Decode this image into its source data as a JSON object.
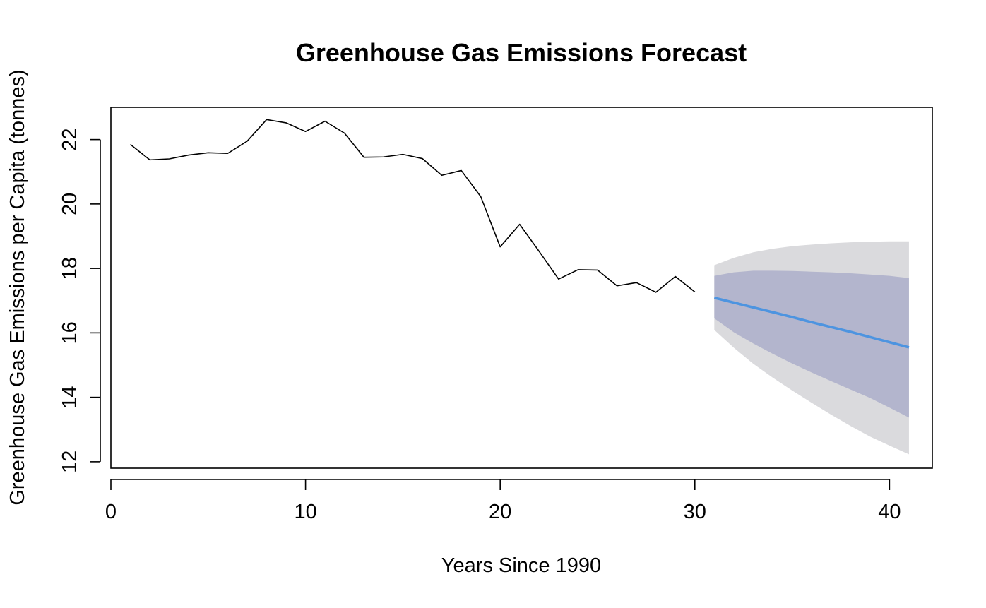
{
  "chart_data": {
    "type": "line",
    "title": "Greenhouse Gas Emissions Forecast",
    "xlabel": "Years Since 1990",
    "ylabel": "Greenhouse Gas Emissions per Capita (tonnes)",
    "xlim": [
      0.0,
      42.2
    ],
    "ylim": [
      11.8,
      23.0
    ],
    "xticks": [
      0,
      10,
      20,
      30,
      40
    ],
    "yticks": [
      12,
      14,
      16,
      18,
      20,
      22
    ],
    "grid": false,
    "legend": "none",
    "colors": {
      "history": "#000000",
      "forecast_line": "#4d94e0",
      "interval_80": "#b3b5cd",
      "interval_95": "#dadadd",
      "frame": "#000000"
    },
    "series": [
      {
        "role": "history",
        "x": [
          1,
          2,
          3,
          4,
          5,
          6,
          7,
          8,
          9,
          10,
          11,
          12,
          13,
          14,
          15,
          16,
          17,
          18,
          19,
          20,
          21,
          22,
          23,
          24,
          25,
          26,
          27,
          28,
          29,
          30
        ],
        "y": [
          21.85,
          21.37,
          21.4,
          21.52,
          21.59,
          21.57,
          21.95,
          22.62,
          22.52,
          22.25,
          22.57,
          22.2,
          21.45,
          21.46,
          21.54,
          21.41,
          20.89,
          21.04,
          20.23,
          18.67,
          19.37,
          18.53,
          17.67,
          17.96,
          17.95,
          17.46,
          17.56,
          17.26,
          17.75,
          17.27
        ]
      },
      {
        "role": "forecast",
        "x": [
          31,
          32,
          33,
          34,
          35,
          36,
          37,
          38,
          39,
          40,
          41
        ],
        "y": [
          17.09,
          16.94,
          16.79,
          16.64,
          16.49,
          16.33,
          16.18,
          16.03,
          15.87,
          15.71,
          15.55
        ],
        "lower_80": [
          16.45,
          16.02,
          15.67,
          15.35,
          15.05,
          14.77,
          14.5,
          14.24,
          13.98,
          13.68,
          13.37
        ],
        "upper_80": [
          17.77,
          17.88,
          17.93,
          17.93,
          17.92,
          17.9,
          17.88,
          17.85,
          17.81,
          17.77,
          17.7
        ],
        "lower_95": [
          16.09,
          15.54,
          15.04,
          14.61,
          14.21,
          13.83,
          13.46,
          13.11,
          12.78,
          12.5,
          12.23
        ],
        "upper_95": [
          18.1,
          18.33,
          18.5,
          18.61,
          18.69,
          18.74,
          18.78,
          18.81,
          18.83,
          18.84,
          18.84
        ]
      }
    ]
  }
}
